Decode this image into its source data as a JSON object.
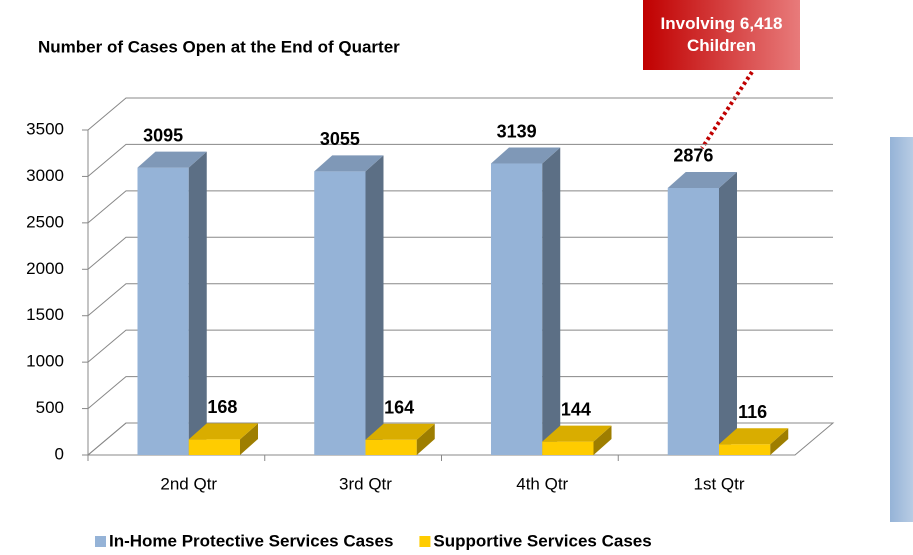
{
  "chart_data": {
    "type": "bar3d",
    "title": "Number of Cases Open at the End of Quarter",
    "annotation": "Involving 6,418 Children",
    "categories": [
      "2nd Qtr",
      "3rd Qtr",
      "4th Qtr",
      "1st Qtr"
    ],
    "series": [
      {
        "name": "In-Home Protective Services Cases",
        "color": "#95b3d7",
        "values": [
          3095,
          3055,
          3139,
          2876
        ]
      },
      {
        "name": "Supportive Services Cases",
        "color": "#ffcc00",
        "values": [
          168,
          164,
          144,
          116
        ]
      }
    ],
    "ylim": [
      0,
      3500
    ],
    "yticks": [
      0,
      500,
      1000,
      1500,
      2000,
      2500,
      3000,
      3500
    ],
    "grid": true,
    "legend": "bottom"
  }
}
